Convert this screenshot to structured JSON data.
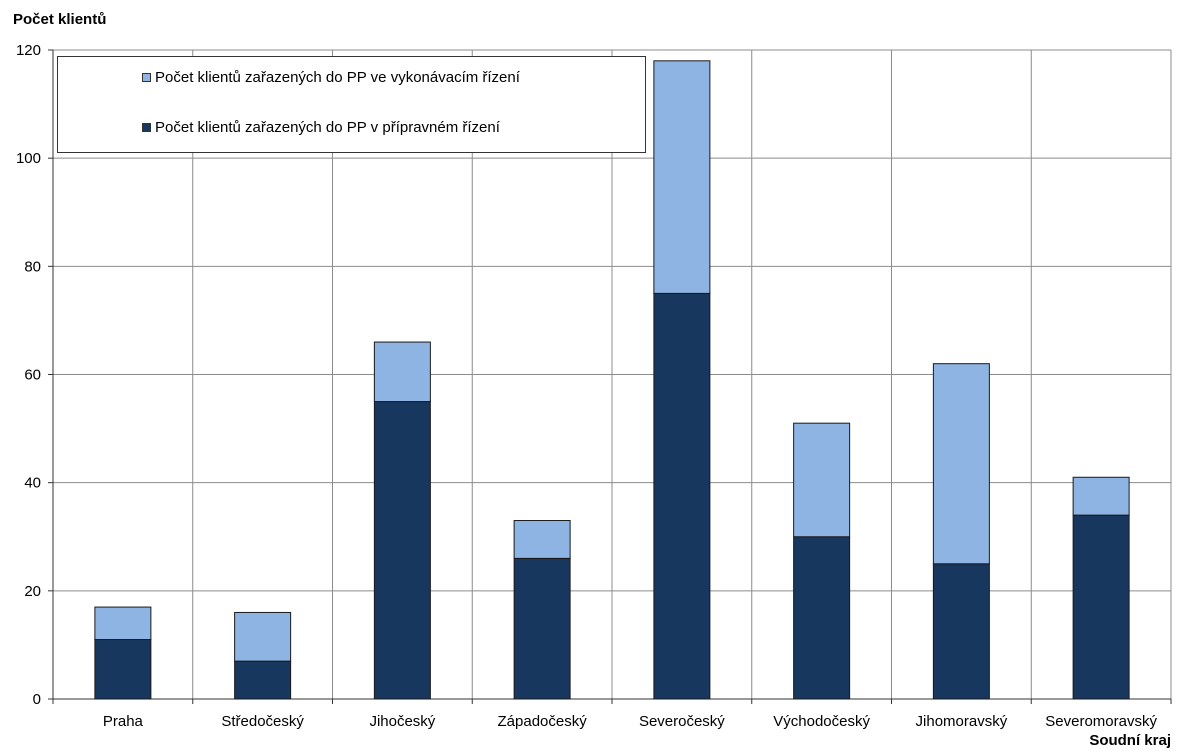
{
  "chart_data": {
    "type": "bar",
    "stacked": true,
    "ylabel": "Počet klientů",
    "xlabel": "Soudní kraj",
    "ylim": [
      0,
      120
    ],
    "yticks": [
      0,
      20,
      40,
      60,
      80,
      100,
      120
    ],
    "grid": true,
    "legend_position": "top-left",
    "categories": [
      "Praha",
      "Středočeský",
      "Jihočeský",
      "Západočeský",
      "Severočeský",
      "Východočeský",
      "Jihomoravský",
      "Severomoravský"
    ],
    "series": [
      {
        "name": "Počet klientů zařazených do PP v přípravném řízení",
        "color": "#17375e",
        "values": [
          11,
          7,
          55,
          26,
          75,
          30,
          25,
          34
        ]
      },
      {
        "name": "Počet klientů zařazených do PP ve vykonávacím řízení",
        "color": "#8eb4e3",
        "values": [
          6,
          9,
          11,
          7,
          43,
          21,
          37,
          7
        ]
      }
    ],
    "legend_order": [
      1,
      0
    ]
  }
}
